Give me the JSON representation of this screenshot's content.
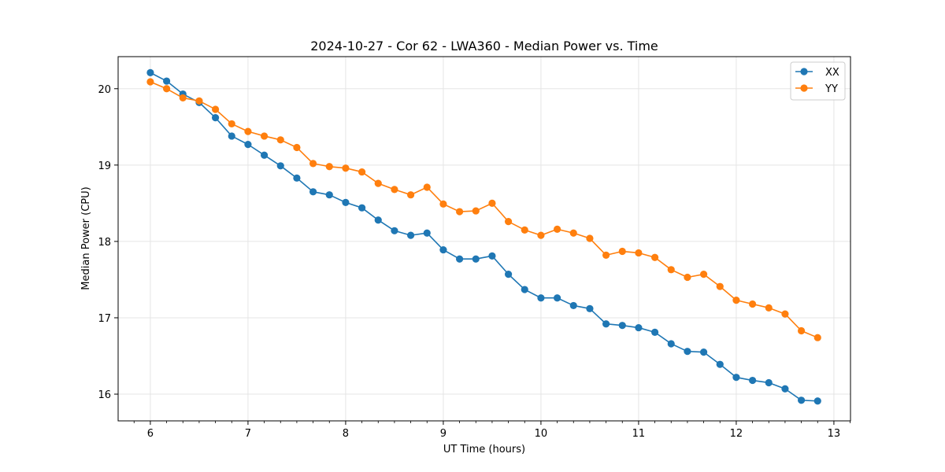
{
  "chart_data": {
    "type": "line",
    "title": "2024-10-27 - Cor 62 - LWA360 - Median Power vs. Time",
    "xlabel": "UT Time (hours)",
    "ylabel": "Median Power (CPU)",
    "xlim": [
      5.67,
      13.17
    ],
    "ylim": [
      15.65,
      20.42
    ],
    "xticks": [
      6,
      7,
      8,
      9,
      10,
      11,
      12,
      13
    ],
    "xtick_labels": [
      "6",
      "7",
      "8",
      "9",
      "10",
      "11",
      "12",
      "13"
    ],
    "yticks": [
      16,
      17,
      18,
      19,
      20
    ],
    "ytick_labels": [
      "16",
      "17",
      "18",
      "19",
      "20"
    ],
    "grid": true,
    "legend_position": "top-right",
    "x": [
      6.0,
      6.1667,
      6.3333,
      6.5,
      6.6667,
      6.8333,
      7.0,
      7.1667,
      7.3333,
      7.5,
      7.6667,
      7.8333,
      8.0,
      8.1667,
      8.3333,
      8.5,
      8.6667,
      8.8333,
      9.0,
      9.1667,
      9.3333,
      9.5,
      9.6667,
      9.8333,
      10.0,
      10.1667,
      10.3333,
      10.5,
      10.6667,
      10.8333,
      11.0,
      11.1667,
      11.3333,
      11.5,
      11.6667,
      11.8333,
      12.0,
      12.1667,
      12.3333,
      12.5,
      12.6667,
      12.8333
    ],
    "series": [
      {
        "name": "XX",
        "color": "#1f77b4",
        "values": [
          20.21,
          20.1,
          19.93,
          19.82,
          19.62,
          19.38,
          19.27,
          19.13,
          18.99,
          18.83,
          18.65,
          18.61,
          18.51,
          18.44,
          18.28,
          18.14,
          18.08,
          18.11,
          17.89,
          17.77,
          17.77,
          17.81,
          17.57,
          17.37,
          17.26,
          17.26,
          17.16,
          17.12,
          16.92,
          16.9,
          16.87,
          16.81,
          16.66,
          16.56,
          16.55,
          16.39,
          16.22,
          16.18,
          16.15,
          16.07,
          15.92,
          15.91
        ]
      },
      {
        "name": "YY",
        "color": "#ff7f0e",
        "values": [
          20.09,
          20.0,
          19.88,
          19.84,
          19.73,
          19.54,
          19.44,
          19.38,
          19.33,
          19.23,
          19.02,
          18.98,
          18.96,
          18.91,
          18.76,
          18.68,
          18.61,
          18.71,
          18.49,
          18.39,
          18.4,
          18.5,
          18.26,
          18.15,
          18.08,
          18.16,
          18.11,
          18.04,
          17.82,
          17.87,
          17.85,
          17.79,
          17.63,
          17.53,
          17.57,
          17.41,
          17.23,
          17.18,
          17.13,
          17.05,
          16.83,
          16.74
        ]
      }
    ]
  }
}
